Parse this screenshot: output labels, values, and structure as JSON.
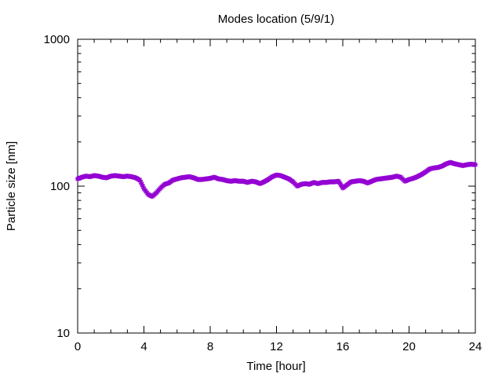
{
  "chart_data": {
    "type": "scatter",
    "title": "Modes location (5/9/1)",
    "xlabel": "Time [hour]",
    "ylabel": "Particle size [nm]",
    "xlim": [
      0,
      24
    ],
    "ylim": [
      10,
      1000
    ],
    "yscale": "log",
    "grid": false,
    "legend": "none",
    "x_ticks": [
      0,
      4,
      8,
      12,
      16,
      20,
      24
    ],
    "x_tick_labels": [
      "0",
      "4",
      "8",
      "12",
      "16",
      "20",
      "24"
    ],
    "y_ticks": [
      10,
      100,
      1000
    ],
    "y_tick_labels": [
      "10",
      "100",
      "1000"
    ],
    "series": [
      {
        "color": "#9400d3",
        "marker": "star",
        "x": [
          0.0,
          0.25,
          0.5,
          0.75,
          1.0,
          1.25,
          1.5,
          1.75,
          2.0,
          2.25,
          2.5,
          2.75,
          3.0,
          3.25,
          3.5,
          3.75,
          4.0,
          4.25,
          4.5,
          4.75,
          5.0,
          5.25,
          5.5,
          5.75,
          6.0,
          6.25,
          6.5,
          6.75,
          7.0,
          7.25,
          7.5,
          7.75,
          8.0,
          8.25,
          8.5,
          8.75,
          9.0,
          9.25,
          9.5,
          9.75,
          10.0,
          10.25,
          10.5,
          10.75,
          11.0,
          11.25,
          11.5,
          11.75,
          12.0,
          12.25,
          12.5,
          12.75,
          13.0,
          13.25,
          13.5,
          13.75,
          14.0,
          14.25,
          14.5,
          14.75,
          15.0,
          15.25,
          15.5,
          15.75,
          16.0,
          16.25,
          16.5,
          16.75,
          17.0,
          17.25,
          17.5,
          17.75,
          18.0,
          18.25,
          18.5,
          18.75,
          19.0,
          19.25,
          19.5,
          19.75,
          20.0,
          20.25,
          20.5,
          20.75,
          21.0,
          21.25,
          21.5,
          21.75,
          22.0,
          22.25,
          22.5,
          22.75,
          23.0,
          23.25,
          23.5,
          23.75,
          24.0
        ],
        "y": [
          112,
          115,
          117,
          116,
          118,
          117,
          115,
          114,
          117,
          118,
          117,
          116,
          117,
          116,
          114,
          110,
          96,
          88,
          85,
          90,
          97,
          103,
          105,
          110,
          112,
          114,
          115,
          116,
          114,
          111,
          111,
          112,
          113,
          115,
          112,
          111,
          109,
          108,
          109,
          108,
          108,
          106,
          108,
          107,
          104,
          107,
          111,
          116,
          119,
          118,
          115,
          112,
          107,
          100,
          103,
          104,
          103,
          106,
          104,
          106,
          106,
          107,
          107,
          108,
          97,
          102,
          107,
          108,
          109,
          108,
          105,
          108,
          111,
          112,
          113,
          114,
          115,
          117,
          115,
          108,
          111,
          113,
          116,
          120,
          125,
          131,
          133,
          134,
          137,
          142,
          145,
          142,
          140,
          138,
          140,
          141,
          140
        ]
      }
    ]
  }
}
